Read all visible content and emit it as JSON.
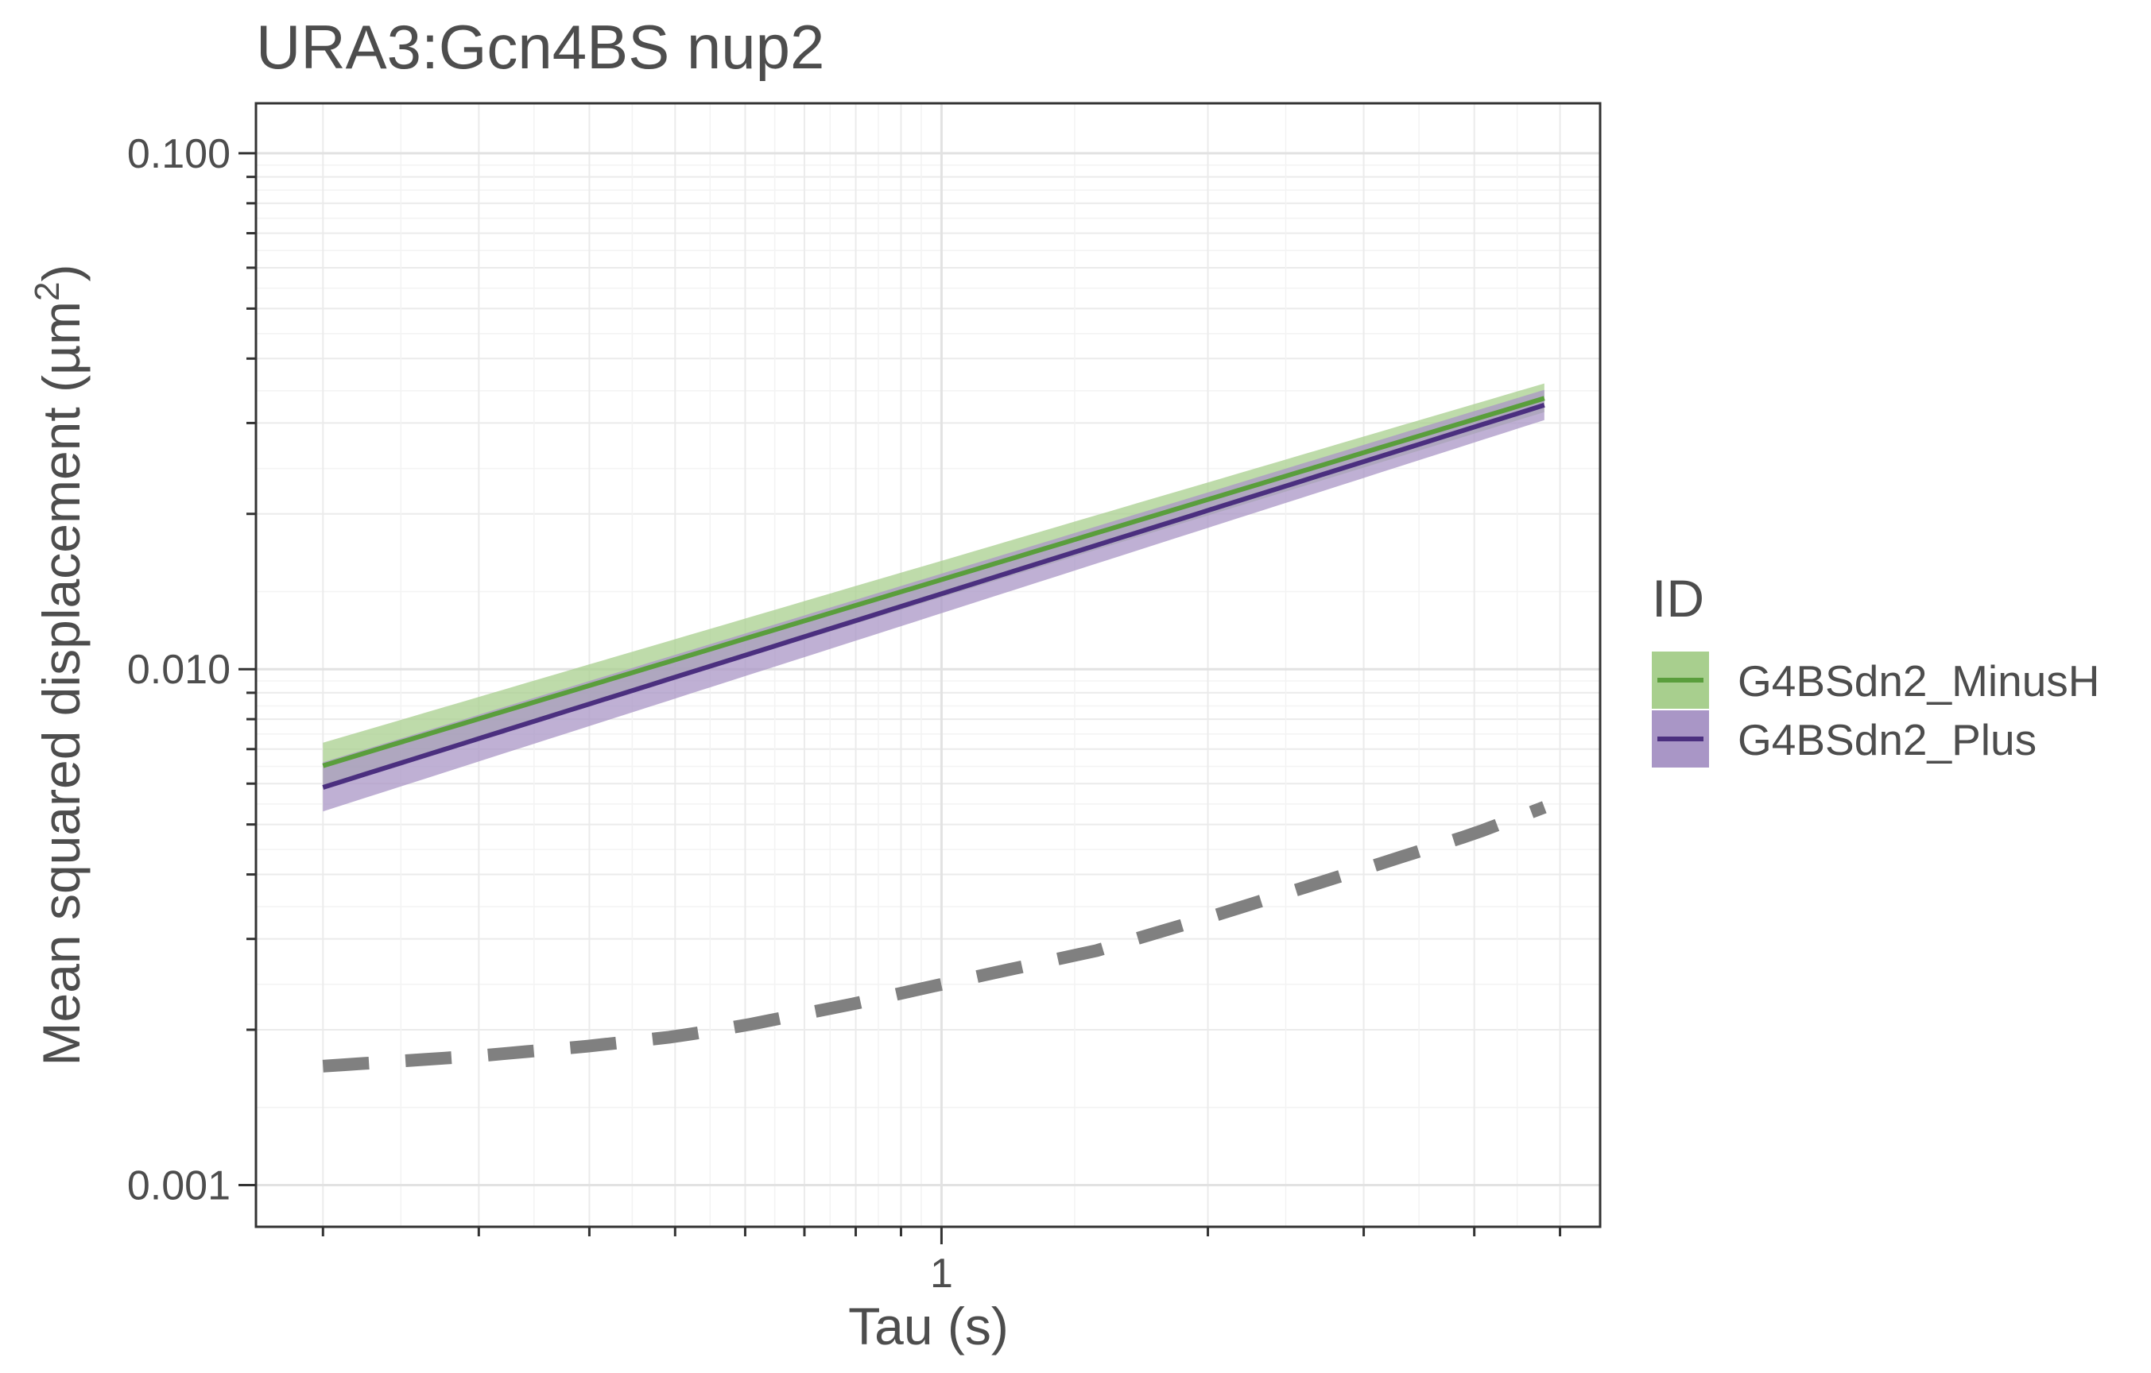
{
  "chart_data": {
    "type": "line",
    "title": "URA3:Gcn4BS nup2",
    "xlabel": "Tau (s)",
    "ylabel": "Mean squared displacement (µm",
    "ylabel_sup": "2",
    "ylabel_close": ")",
    "x_scale": "log",
    "y_scale": "log",
    "xlim": [
      0.168,
      5.55
    ],
    "ylim": [
      0.00083,
      0.125
    ],
    "x_ticks": [
      1
    ],
    "x_tick_labels": [
      "1"
    ],
    "y_ticks": [
      0.1,
      0.01,
      0.001
    ],
    "y_tick_labels": [
      "0.100",
      "0.010",
      "0.001"
    ],
    "grid": true,
    "legend_title": "ID",
    "legend_position": "right",
    "series": [
      {
        "name": "G4BSdn2_MinusH",
        "color": "#5a9e3c",
        "band_color": "#a8cf8e",
        "x": [
          0.2,
          4.8
        ],
        "y": [
          0.0065,
          0.0335
        ],
        "lower": [
          0.0059,
          0.0315
        ],
        "upper": [
          0.0072,
          0.0358
        ]
      },
      {
        "name": "G4BSdn2_Plus",
        "color": "#4b2f7f",
        "band_color": "#a996c6",
        "x": [
          0.2,
          4.8
        ],
        "y": [
          0.0059,
          0.0325
        ],
        "lower": [
          0.0053,
          0.0304
        ],
        "upper": [
          0.0066,
          0.0348
        ]
      },
      {
        "name": "",
        "style": "dashed",
        "color": "#808080",
        "x": [
          0.2,
          0.3,
          0.4,
          0.5,
          0.6,
          0.8,
          1.0,
          1.5,
          2.0,
          3.0,
          4.0,
          4.8
        ],
        "y": [
          0.0017,
          0.00178,
          0.00186,
          0.00194,
          0.00204,
          0.00225,
          0.00245,
          0.00285,
          0.0033,
          0.0041,
          0.0048,
          0.0054
        ]
      }
    ]
  }
}
